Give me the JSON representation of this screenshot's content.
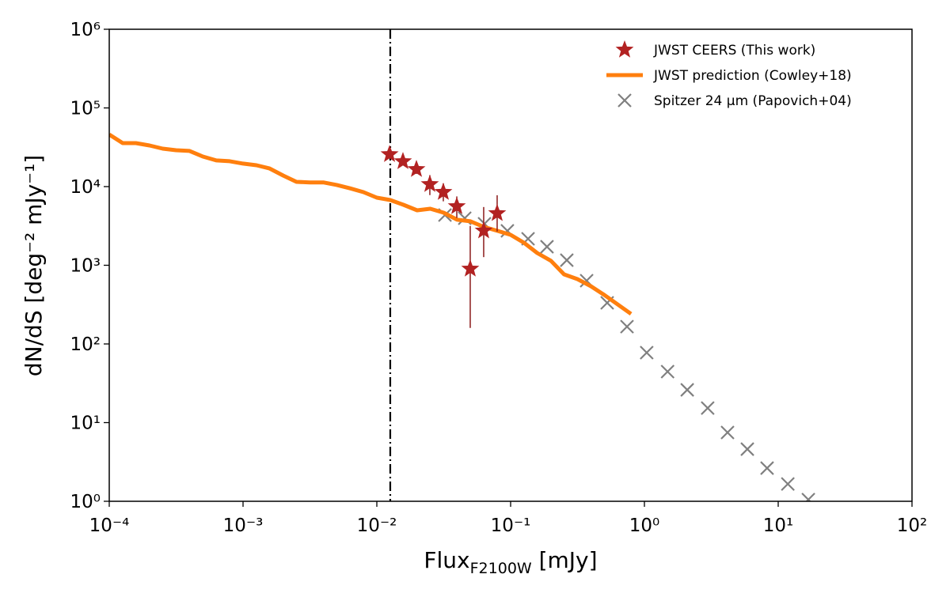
{
  "chart_data": {
    "type": "scatter",
    "xscale": "log",
    "yscale": "log",
    "xlabel": {
      "text": "Flux",
      "sub": "F2100W",
      "rest": " [mJy]"
    },
    "ylabel": "dN/dS [deg⁻² mJy⁻¹]",
    "xlim": [
      0.0001,
      100
    ],
    "ylim": [
      1,
      1000000
    ],
    "xticks": [
      {
        "value": 0.0001,
        "label": "10⁻⁴"
      },
      {
        "value": 0.001,
        "label": "10⁻³"
      },
      {
        "value": 0.01,
        "label": "10⁻²"
      },
      {
        "value": 0.1,
        "label": "10⁻¹"
      },
      {
        "value": 1,
        "label": "10⁰"
      },
      {
        "value": 10,
        "label": "10¹"
      },
      {
        "value": 100,
        "label": "10²"
      }
    ],
    "yticks": [
      {
        "value": 1,
        "label": "10⁰"
      },
      {
        "value": 10,
        "label": "10¹"
      },
      {
        "value": 100,
        "label": "10²"
      },
      {
        "value": 1000,
        "label": "10³"
      },
      {
        "value": 10000,
        "label": "10⁴"
      },
      {
        "value": 100000,
        "label": "10⁵"
      },
      {
        "value": 1000000,
        "label": "10⁶"
      }
    ],
    "vlines": [
      0.0126
    ],
    "legend": "upper right",
    "series": [
      {
        "name": "JWST CEERS (This work)",
        "type": "scatter",
        "marker": "star",
        "color": "#b22222",
        "errcolor": "#8b1a1a",
        "x": [
          0.01245,
          0.01567,
          0.01977,
          0.0249,
          0.0314,
          0.0396,
          0.0499,
          0.0629,
          0.0793
        ],
        "values": [
          25700,
          20900,
          16600,
          10700,
          8500,
          5600,
          900,
          2750,
          4570
        ],
        "ylow": [
          23400,
          18600,
          14500,
          7800,
          6500,
          4000,
          160,
          1270,
          2690
        ],
        "yhigh": [
          28200,
          23400,
          18800,
          14000,
          11000,
          7500,
          3160,
          5500,
          7760
        ]
      },
      {
        "name": "JWST prediction (Cowley+18)",
        "type": "line",
        "color": "#ff7f0e",
        "x": [
          0.0001,
          0.000126,
          0.000158,
          0.0002,
          0.000251,
          0.000316,
          0.000398,
          0.000501,
          0.000631,
          0.000794,
          0.001,
          0.00126,
          0.00158,
          0.002,
          0.00251,
          0.00316,
          0.00398,
          0.00501,
          0.00631,
          0.00794,
          0.01,
          0.0126,
          0.0158,
          0.02,
          0.0251,
          0.0316,
          0.0398,
          0.0501,
          0.0631,
          0.0794,
          0.1,
          0.126,
          0.158,
          0.2,
          0.251,
          0.316,
          0.398,
          0.501,
          0.631,
          0.794
        ],
        "values": [
          46000,
          35700,
          35700,
          33300,
          30400,
          29000,
          28400,
          24100,
          21500,
          21000,
          19600,
          18700,
          17000,
          13800,
          11500,
          11300,
          11300,
          10500,
          9500,
          8500,
          7230,
          6750,
          5870,
          4990,
          5230,
          4660,
          3790,
          3620,
          3070,
          2740,
          2440,
          1930,
          1430,
          1140,
          766,
          667,
          542,
          420,
          318,
          241
        ]
      },
      {
        "name": "Spitzer 24 μm (Papovich+04)",
        "type": "scatter",
        "marker": "x",
        "color": "#808080",
        "x": [
          0.0323,
          0.0454,
          0.0638,
          0.0946,
          0.135,
          0.187,
          0.263,
          0.37,
          0.527,
          0.741,
          1.04,
          1.49,
          2.09,
          2.97,
          4.18,
          5.88,
          8.26,
          11.8,
          16.8
        ],
        "values": [
          4350,
          3960,
          3370,
          2740,
          2170,
          1720,
          1160,
          637,
          333,
          166,
          77.5,
          44.5,
          26.1,
          15.3,
          7.49,
          4.6,
          2.64,
          1.66,
          1.05
        ]
      }
    ]
  }
}
